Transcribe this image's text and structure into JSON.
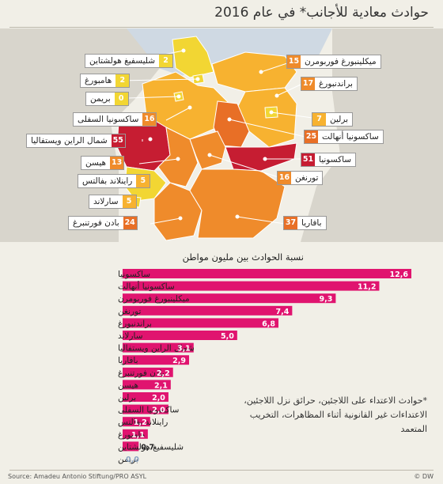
{
  "title": "حوادث معادية للأجانب* في عام 2016",
  "colors": {
    "background": "#f1efe7",
    "light": "#f2d633",
    "mid_light": "#f7b230",
    "mid": "#ef8b2b",
    "dark": "#e86f26",
    "darkest": "#c61d32",
    "bar": "#e0146f",
    "bar_zero": "#8aa3c2"
  },
  "map_labels": [
    {
      "name": "شليسفيغ هولشتاين",
      "value": "2"
    },
    {
      "name": "هامبورغ",
      "value": "2"
    },
    {
      "name": "بريمن",
      "value": "0"
    },
    {
      "name": "ساكسونيا السفلى",
      "value": "16"
    },
    {
      "name": "شمال الراين ويستفاليا",
      "value": "55"
    },
    {
      "name": "هيسن",
      "value": "13"
    },
    {
      "name": "راينلاند بفالتس",
      "value": "5"
    },
    {
      "name": "سارلاند",
      "value": "5"
    },
    {
      "name": "بادن فورتنبرغ",
      "value": "24"
    },
    {
      "name": "ميكلينبورغ فوربومرن",
      "value": "15"
    },
    {
      "name": "براندنبورغ",
      "value": "17"
    },
    {
      "name": "برلين",
      "value": "7"
    },
    {
      "name": "ساكسونيا أنهالت",
      "value": "25"
    },
    {
      "name": "ساكسونيا",
      "value": "51"
    },
    {
      "name": "تورنغن",
      "value": "16"
    },
    {
      "name": "بافاريا",
      "value": "37"
    }
  ],
  "chart_data": {
    "type": "bar",
    "orientation": "horizontal",
    "title": "نسبة الحوادث بين مليون مواطن",
    "categories": [
      "ساكسونيا",
      "ساكسونيا أنهالت",
      "ميكلينبورغ فوربومرن",
      "تورنغن",
      "براندنبورغ",
      "سارلاند",
      "شمال الراين ويستفاليا",
      "بافاريا",
      "بادن فورتنبرغ",
      "هيسن",
      "برلين",
      "ساكسونيا السفلى",
      "راينلاند بفالتس",
      "هامبورغ",
      "شليسفيغ هولشتاين",
      "بريمن"
    ],
    "values": [
      12.6,
      11.2,
      9.3,
      7.4,
      6.8,
      5.0,
      3.1,
      2.9,
      2.2,
      2.1,
      2.0,
      2.0,
      1.2,
      1.1,
      0.7,
      0.0
    ],
    "value_labels": [
      "12,6",
      "11,2",
      "9,3",
      "7,4",
      "6,8",
      "5,0",
      "3,1",
      "2,9",
      "2,2",
      "2,1",
      "2,0",
      "2,0",
      "1,2",
      "1,1",
      "0,7",
      "0,0"
    ],
    "xlim": [
      0,
      12.6
    ],
    "grid": false,
    "legend": "none"
  },
  "note": "*حوادث الاعتداء على اللاجئين، حرائق نزل اللاجئين، الاعتداءات غير القانونية أثناء المظاهرات، التخريب المتعمد",
  "source": "Source: Amadeu Antonio Stiftung/PRO ASYL",
  "logo": "© DW"
}
